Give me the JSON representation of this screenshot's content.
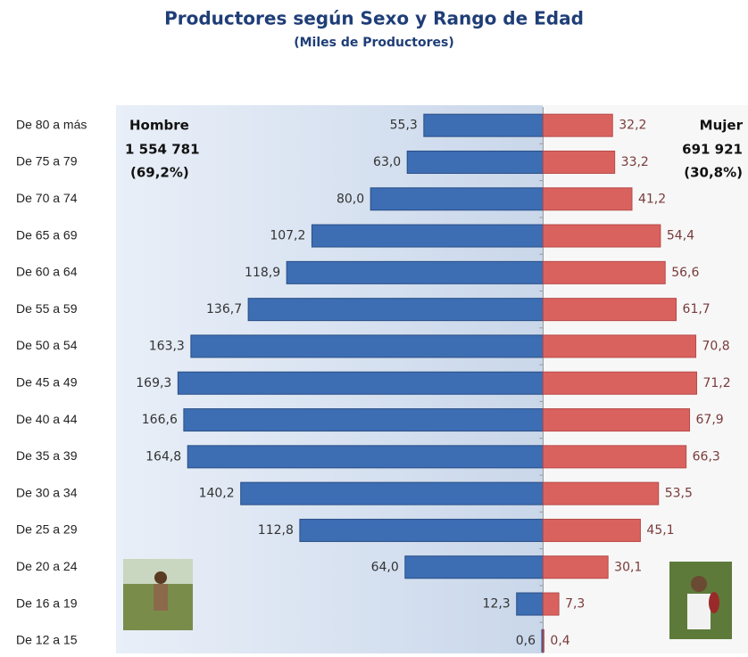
{
  "chart_data": {
    "type": "pyramid",
    "title": "Productores según Sexo y Rango de Edad",
    "subtitle": "(Miles de Productores)",
    "categories": [
      "De 80 a más",
      "De 75 a 79",
      "De 70 a 74",
      "De 65 a 69",
      "De 60 a 64",
      "De 55 a 59",
      "De 50 a 54",
      "De 45 a 49",
      "De 40 a 44",
      "De 35 a 39",
      "De 30 a 34",
      "De 25 a 29",
      "De 20 a 24",
      "De 16 a 19",
      "De 12 a 15"
    ],
    "xlim": [
      -198,
      95
    ],
    "series": [
      {
        "name": "Hombre",
        "color": "#3d6db3",
        "side": "left",
        "total_label": "1 554 781",
        "share_label": "(69,2%)",
        "values": [
          55.3,
          63.0,
          80.0,
          107.2,
          118.9,
          136.7,
          163.3,
          169.3,
          166.6,
          164.8,
          140.2,
          112.8,
          64.0,
          12.3,
          0.6
        ],
        "value_labels": [
          "55,3",
          "63,0",
          "80,0",
          "107,2",
          "118,9",
          "136,7",
          "163,3",
          "169,3",
          "166,6",
          "164,8",
          "140,2",
          "112,8",
          "64,0",
          "12,3",
          "0,6"
        ]
      },
      {
        "name": "Mujer",
        "color": "#d9625f",
        "side": "right",
        "total_label": "691 921",
        "share_label": "(30,8%)",
        "values": [
          32.2,
          33.2,
          41.2,
          54.4,
          56.6,
          61.7,
          70.8,
          71.2,
          67.9,
          66.3,
          53.5,
          45.1,
          30.1,
          7.3,
          0.4
        ],
        "value_labels": [
          "32,2",
          "33,2",
          "41,2",
          "54,4",
          "56,6",
          "61,7",
          "70,8",
          "71,2",
          "67,9",
          "66,3",
          "53,5",
          "45,1",
          "30,1",
          "7,3",
          "0,4"
        ]
      }
    ]
  }
}
